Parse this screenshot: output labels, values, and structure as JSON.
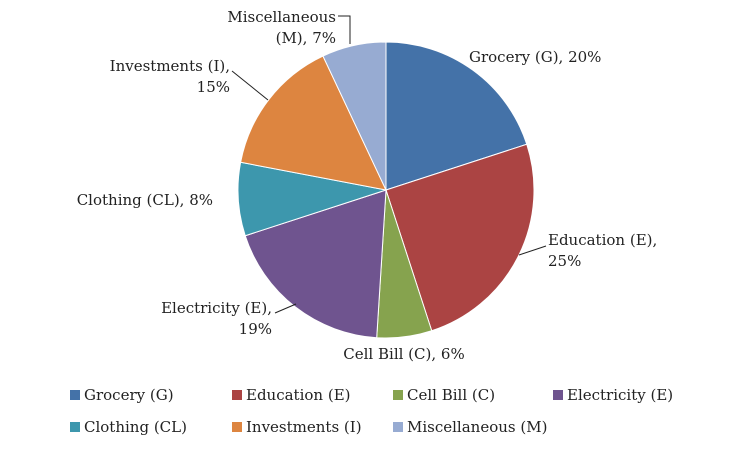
{
  "chart_data": {
    "type": "pie",
    "title": "",
    "slices": [
      {
        "name": "Grocery (G)",
        "value": 20,
        "color": "#4472a8",
        "label": [
          "Grocery (G), 20%"
        ]
      },
      {
        "name": "Education (E)",
        "value": 25,
        "color": "#ab4443",
        "label": [
          "Education (E),",
          "25%"
        ]
      },
      {
        "name": "Cell Bill (C)",
        "value": 6,
        "color": "#86a34e",
        "label": [
          "Cell Bill (C), 6%"
        ]
      },
      {
        "name": "Electricity (E)",
        "value": 19,
        "color": "#6f548f",
        "label": [
          "Electricity (E),",
          "19%"
        ]
      },
      {
        "name": "Clothing (CL)",
        "value": 8,
        "color": "#3d97ad",
        "label": [
          "Clothing (CL), 8%"
        ]
      },
      {
        "name": "Investments (I)",
        "value": 15,
        "color": "#dd8540",
        "label": [
          "Investments (I),",
          "15%"
        ]
      },
      {
        "name": "Miscellaneous (M)",
        "value": 7,
        "color": "#97abd2",
        "label": [
          "Miscellaneous",
          "(M), 7%"
        ]
      }
    ],
    "legend_position": "bottom"
  }
}
